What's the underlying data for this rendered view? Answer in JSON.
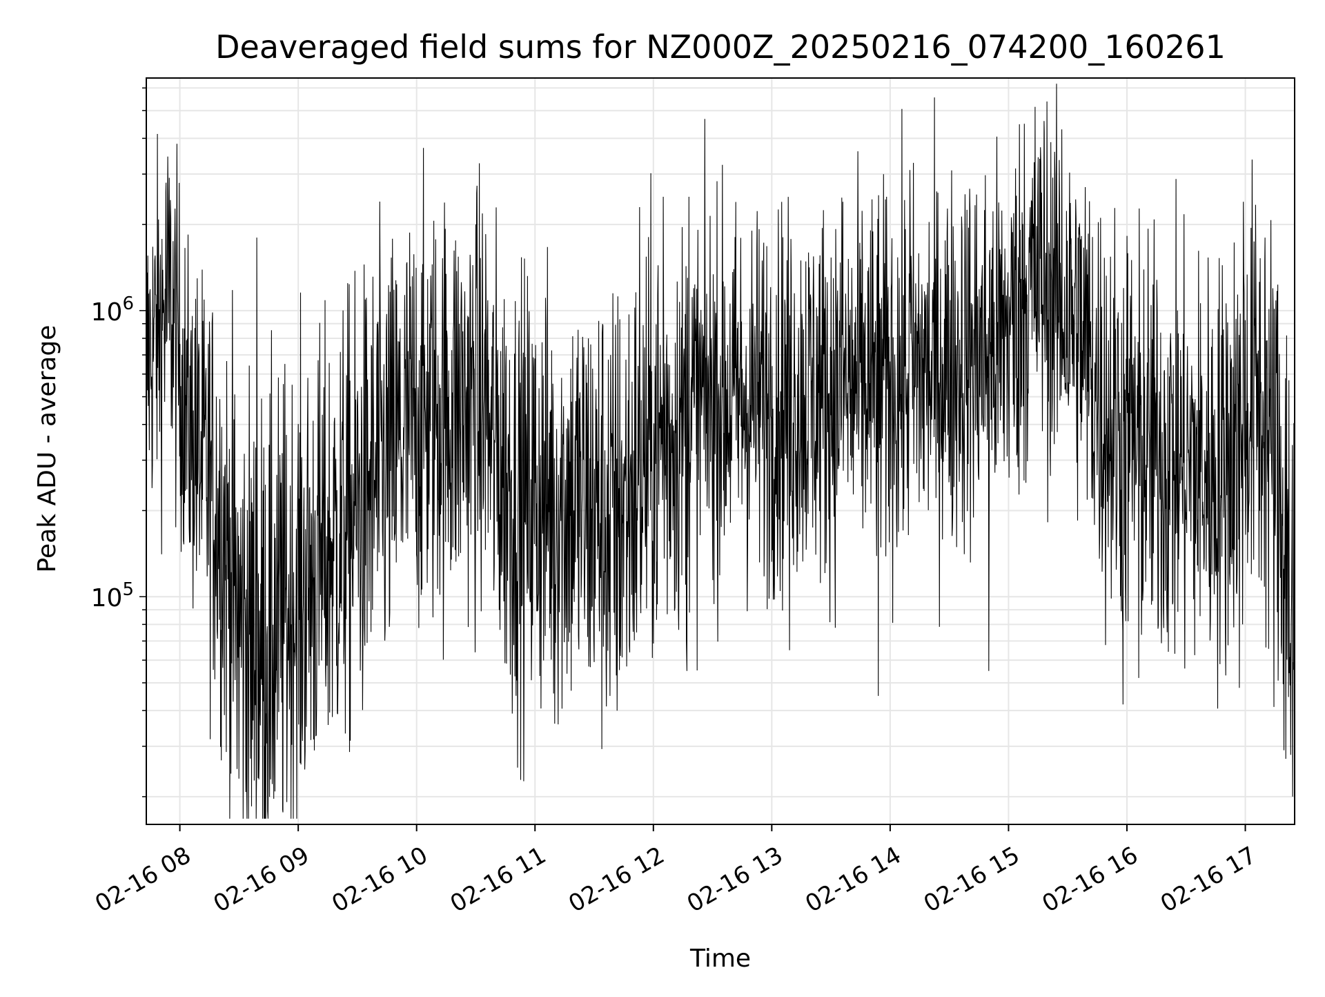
{
  "chart_data": {
    "type": "line",
    "title": "Deaveraged field sums for NZ000Z_20250216_074200_160261",
    "xlabel": "Time",
    "ylabel": "Peak ADU - average",
    "yscale": "log",
    "ylim": [
      16000,
      6500000
    ],
    "xlim": [
      "2025-02-16 07:43",
      "2025-02-16 17:25"
    ],
    "grid": true,
    "x_ticks": [
      {
        "value": "2025-02-16 08:00",
        "label": "02-16 08"
      },
      {
        "value": "2025-02-16 09:00",
        "label": "02-16 09"
      },
      {
        "value": "2025-02-16 10:00",
        "label": "02-16 10"
      },
      {
        "value": "2025-02-16 11:00",
        "label": "02-16 11"
      },
      {
        "value": "2025-02-16 12:00",
        "label": "02-16 12"
      },
      {
        "value": "2025-02-16 13:00",
        "label": "02-16 13"
      },
      {
        "value": "2025-02-16 14:00",
        "label": "02-16 14"
      },
      {
        "value": "2025-02-16 15:00",
        "label": "02-16 15"
      },
      {
        "value": "2025-02-16 16:00",
        "label": "02-16 16"
      },
      {
        "value": "2025-02-16 17:00",
        "label": "02-16 17"
      }
    ],
    "y_ticks": [
      {
        "value": 100000,
        "base": "10",
        "exp": "5"
      },
      {
        "value": 1000000,
        "base": "10",
        "exp": "6"
      }
    ],
    "series": [
      {
        "color": "#000000",
        "envelope": [
          {
            "t": "2025-02-16 07:43",
            "level": 650000,
            "spread": 0.3
          },
          {
            "t": "2025-02-16 07:55",
            "level": 1100000,
            "spread": 0.32
          },
          {
            "t": "2025-02-16 08:05",
            "level": 380000,
            "spread": 0.3
          },
          {
            "t": "2025-02-16 08:20",
            "level": 200000,
            "spread": 0.38
          },
          {
            "t": "2025-02-16 08:30",
            "level": 80000,
            "spread": 0.45
          },
          {
            "t": "2025-02-16 08:40",
            "level": 65000,
            "spread": 0.45
          },
          {
            "t": "2025-02-16 08:55",
            "level": 90000,
            "spread": 0.42
          },
          {
            "t": "2025-02-16 09:15",
            "level": 140000,
            "spread": 0.4
          },
          {
            "t": "2025-02-16 09:40",
            "level": 250000,
            "spread": 0.4
          },
          {
            "t": "2025-02-16 10:00",
            "level": 420000,
            "spread": 0.38
          },
          {
            "t": "2025-02-16 10:30",
            "level": 480000,
            "spread": 0.38
          },
          {
            "t": "2025-02-16 10:50",
            "level": 220000,
            "spread": 0.4
          },
          {
            "t": "2025-02-16 11:20",
            "level": 220000,
            "spread": 0.4
          },
          {
            "t": "2025-02-16 11:40",
            "level": 180000,
            "spread": 0.42
          },
          {
            "t": "2025-02-16 12:00",
            "level": 330000,
            "spread": 0.38
          },
          {
            "t": "2025-02-16 12:30",
            "level": 500000,
            "spread": 0.34
          },
          {
            "t": "2025-02-16 13:00",
            "level": 480000,
            "spread": 0.34
          },
          {
            "t": "2025-02-16 13:30",
            "level": 520000,
            "spread": 0.34
          },
          {
            "t": "2025-02-16 14:00",
            "level": 560000,
            "spread": 0.34
          },
          {
            "t": "2025-02-16 14:30",
            "level": 650000,
            "spread": 0.34
          },
          {
            "t": "2025-02-16 14:55",
            "level": 750000,
            "spread": 0.34
          },
          {
            "t": "2025-02-16 15:15",
            "level": 1300000,
            "spread": 0.33
          },
          {
            "t": "2025-02-16 15:35",
            "level": 900000,
            "spread": 0.33
          },
          {
            "t": "2025-02-16 15:50",
            "level": 420000,
            "spread": 0.38
          },
          {
            "t": "2025-02-16 16:10",
            "level": 330000,
            "spread": 0.38
          },
          {
            "t": "2025-02-16 16:45",
            "level": 260000,
            "spread": 0.38
          },
          {
            "t": "2025-02-16 17:05",
            "level": 520000,
            "spread": 0.38
          },
          {
            "t": "2025-02-16 17:15",
            "level": 300000,
            "spread": 0.42
          },
          {
            "t": "2025-02-16 17:25",
            "level": 100000,
            "spread": 0.55
          }
        ],
        "spikes": [
          {
            "t": "2025-02-16 07:53",
            "value": 2800000
          },
          {
            "t": "2025-02-16 08:08",
            "value": 1100000
          },
          {
            "t": "2025-02-16 08:39",
            "value": 1800000
          },
          {
            "t": "2025-02-16 08:29",
            "value": 25000
          },
          {
            "t": "2025-02-16 08:46",
            "value": 23000
          },
          {
            "t": "2025-02-16 09:40",
            "value": 900000
          },
          {
            "t": "2025-02-16 10:30",
            "value": 2000000
          },
          {
            "t": "2025-02-16 10:35",
            "value": 1850000
          },
          {
            "t": "2025-02-16 11:10",
            "value": 36000
          },
          {
            "t": "2025-02-16 11:38",
            "value": 45000
          },
          {
            "t": "2025-02-16 11:53",
            "value": 2300000
          },
          {
            "t": "2025-02-16 12:05",
            "value": 2500000
          },
          {
            "t": "2025-02-16 12:17",
            "value": 55000
          },
          {
            "t": "2025-02-16 12:18",
            "value": 2500000
          },
          {
            "t": "2025-02-16 13:09",
            "value": 65000
          },
          {
            "t": "2025-02-16 13:36",
            "value": 2400000
          },
          {
            "t": "2025-02-16 13:54",
            "value": 45000
          },
          {
            "t": "2025-02-16 14:10",
            "value": 3100000
          },
          {
            "t": "2025-02-16 14:50",
            "value": 55000
          },
          {
            "t": "2025-02-16 15:08",
            "value": 4500000
          },
          {
            "t": "2025-02-16 15:13",
            "value": 3300000
          },
          {
            "t": "2025-02-16 15:18",
            "value": 4600000
          },
          {
            "t": "2025-02-16 15:27",
            "value": 4300000
          },
          {
            "t": "2025-02-16 15:58",
            "value": 42000
          },
          {
            "t": "2025-02-16 16:06",
            "value": 52000
          },
          {
            "t": "2025-02-16 16:57",
            "value": 48000
          },
          {
            "t": "2025-02-16 16:59",
            "value": 2400000
          },
          {
            "t": "2025-02-16 17:10",
            "value": 1800000
          },
          {
            "t": "2025-02-16 17:24",
            "value": 20000
          },
          {
            "t": "2025-02-16 17:23",
            "value": 28000
          }
        ]
      }
    ]
  }
}
